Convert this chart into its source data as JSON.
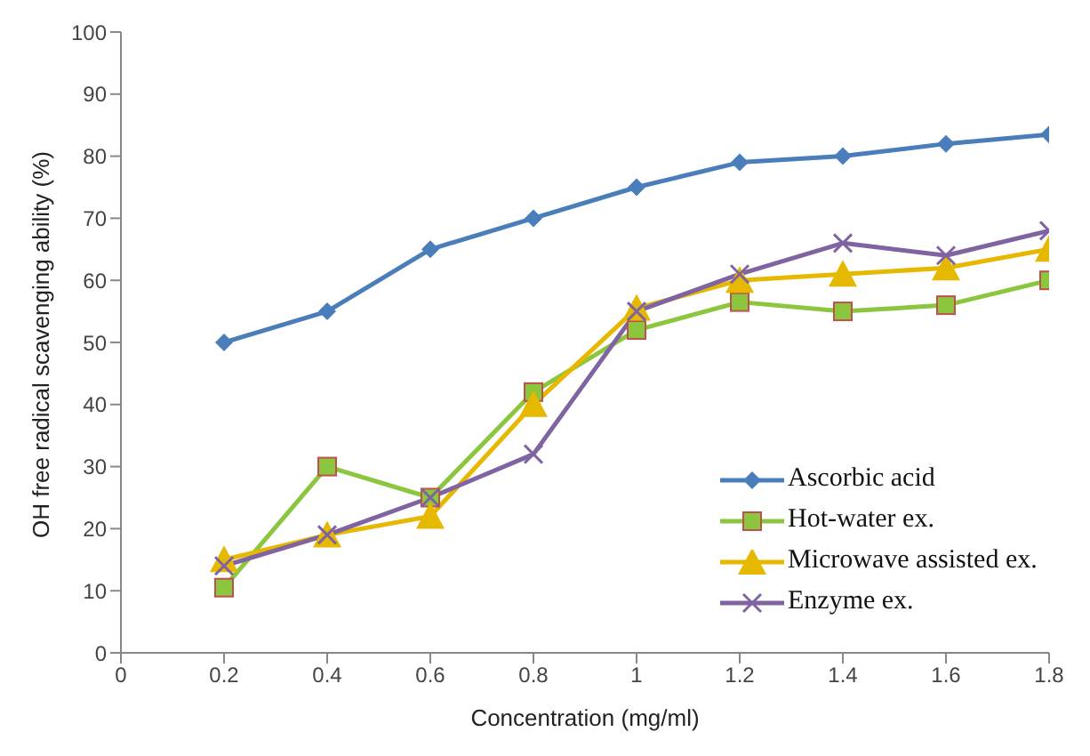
{
  "chart_data": {
    "type": "line",
    "xlabel": "Concentration (mg/ml)",
    "ylabel": "OH free radical scavenging ability (%)",
    "x": [
      0.2,
      0.4,
      0.6,
      0.8,
      1,
      1.2,
      1.4,
      1.6,
      1.8
    ],
    "series": [
      {
        "name": "Ascorbic acid",
        "color": "#4a7ebb",
        "marker": "diamond",
        "values": [
          50,
          55,
          65,
          70,
          75,
          79,
          80,
          82,
          83.5
        ]
      },
      {
        "name": "Hot-water ex.",
        "color": "#8cc63f",
        "marker": "square",
        "values": [
          10.5,
          30,
          25,
          42,
          52,
          56.5,
          55,
          56,
          60
        ]
      },
      {
        "name": "Microwave assisted ex.",
        "color": "#e6b800",
        "marker": "triangle",
        "values": [
          15,
          19,
          22,
          40,
          55.5,
          60,
          61,
          62,
          65
        ]
      },
      {
        "name": "Enzyme ex.",
        "color": "#8064a2",
        "marker": "cross",
        "values": [
          14,
          19,
          25,
          32,
          55,
          61,
          66,
          64,
          68
        ]
      }
    ],
    "xlim": [
      0,
      1.8
    ],
    "xticks": [
      0,
      0.2,
      0.4,
      0.6,
      0.8,
      1,
      1.2,
      1.4,
      1.6,
      1.8
    ],
    "ylim": [
      0,
      100
    ],
    "yticks": [
      0,
      10,
      20,
      30,
      40,
      50,
      60,
      70,
      80,
      90,
      100
    ],
    "legend": "right",
    "grid": false
  }
}
